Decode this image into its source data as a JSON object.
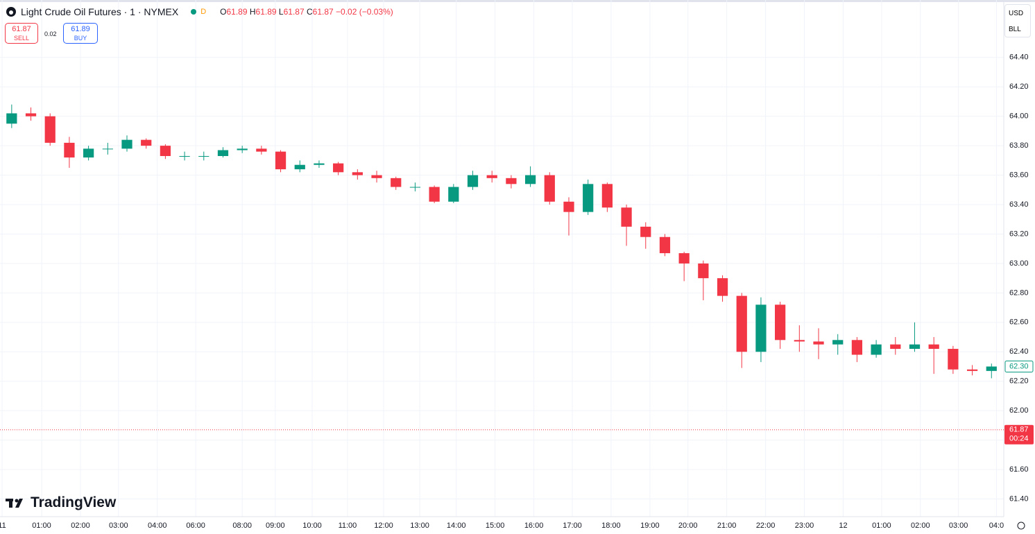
{
  "header": {
    "symbol": "Light Crude Oil Futures · 1 · NYMEX",
    "status": "D",
    "o_label": "O",
    "open": 61.89,
    "h_label": "H",
    "high": 61.89,
    "l_label": "L",
    "low": 61.87,
    "c_label": "C",
    "close": 61.87,
    "change": "−0.02",
    "change_pct": "(−0.03%)"
  },
  "trade": {
    "sell_price": 61.87,
    "sell_label": "SELL",
    "spread": 0.02,
    "buy_price": 61.89,
    "buy_label": "BUY"
  },
  "controls": {
    "currency": "USD",
    "unit": "BLL"
  },
  "brand": "TradingView",
  "chart_data": {
    "type": "candlestick",
    "up_color": "#089981",
    "down_color": "#f23645",
    "grid": true,
    "x": [
      0.25,
      0.75,
      1.25,
      1.75,
      2.25,
      2.75,
      3.25,
      3.75,
      4.25,
      4.75,
      5.25,
      5.75,
      6.25,
      6.75,
      7.25,
      7.75,
      8.25,
      8.75,
      9.25,
      9.75,
      10.25,
      10.75,
      11.25,
      11.75,
      12.25,
      12.75,
      13.25,
      13.75,
      14.25,
      14.75,
      15.25,
      15.75,
      16.25,
      16.75,
      17.25,
      17.75,
      18.25,
      18.75,
      19.25,
      19.75,
      20.25,
      20.75,
      21.25,
      21.75,
      22.25,
      22.75,
      23.25,
      23.75,
      24.25,
      24.75,
      25.25,
      25.75
    ],
    "open": [
      63.95,
      64.02,
      64.0,
      63.82,
      63.72,
      63.78,
      63.78,
      63.84,
      63.8,
      63.73,
      63.73,
      63.73,
      63.77,
      63.78,
      63.76,
      63.64,
      63.67,
      63.68,
      63.62,
      63.6,
      63.58,
      63.52,
      63.52,
      63.42,
      63.52,
      63.6,
      63.58,
      63.54,
      63.6,
      63.42,
      63.35,
      63.54,
      63.38,
      63.25,
      63.18,
      63.07,
      63.0,
      62.9,
      62.78,
      62.4,
      62.72,
      62.48,
      62.47,
      62.45,
      62.48,
      62.38,
      62.45,
      62.42,
      62.45,
      62.42,
      62.28,
      62.27
    ],
    "high": [
      64.08,
      64.06,
      64.02,
      63.86,
      63.8,
      63.82,
      63.87,
      63.85,
      63.81,
      63.76,
      63.76,
      63.79,
      63.8,
      63.8,
      63.77,
      63.7,
      63.7,
      63.69,
      63.64,
      63.63,
      63.59,
      63.55,
      63.53,
      63.54,
      63.63,
      63.63,
      63.6,
      63.66,
      63.62,
      63.45,
      63.57,
      63.55,
      63.4,
      63.28,
      63.2,
      63.08,
      63.02,
      62.92,
      62.8,
      62.77,
      62.74,
      62.58,
      62.56,
      62.52,
      62.5,
      62.48,
      62.5,
      62.6,
      62.5,
      62.44,
      62.31,
      62.32
    ],
    "low": [
      63.92,
      63.97,
      63.8,
      63.65,
      63.7,
      63.74,
      63.76,
      63.78,
      63.71,
      63.7,
      63.7,
      63.72,
      63.75,
      63.74,
      63.62,
      63.62,
      63.65,
      63.6,
      63.57,
      63.55,
      63.5,
      63.49,
      63.41,
      63.41,
      63.5,
      63.55,
      63.51,
      63.52,
      63.4,
      63.19,
      63.33,
      63.35,
      63.12,
      63.1,
      63.05,
      62.88,
      62.75,
      62.74,
      62.29,
      62.33,
      62.42,
      62.4,
      62.35,
      62.38,
      62.33,
      62.36,
      62.38,
      62.4,
      62.25,
      62.25,
      62.24,
      62.22
    ],
    "close": [
      64.02,
      64.0,
      63.82,
      63.72,
      63.78,
      63.78,
      63.84,
      63.8,
      63.73,
      63.73,
      63.73,
      63.77,
      63.78,
      63.76,
      63.64,
      63.67,
      63.68,
      63.62,
      63.6,
      63.58,
      63.52,
      63.52,
      63.42,
      63.52,
      63.6,
      63.58,
      63.54,
      63.6,
      63.42,
      63.35,
      63.54,
      63.38,
      63.25,
      63.18,
      63.07,
      63.0,
      62.9,
      62.78,
      62.4,
      62.72,
      62.48,
      62.47,
      62.45,
      62.48,
      62.38,
      62.45,
      62.42,
      62.45,
      62.42,
      62.28,
      62.27,
      62.3
    ],
    "xlim": [
      -0.054,
      26.07
    ],
    "xticks": [
      {
        "value": 0,
        "label": "11"
      },
      {
        "value": 1.03,
        "label": "01:00"
      },
      {
        "value": 2.04,
        "label": "02:00"
      },
      {
        "value": 3.03,
        "label": "03:00"
      },
      {
        "value": 4.04,
        "label": "04:00"
      },
      {
        "value": 5.04,
        "label": "06:00"
      },
      {
        "value": 6.25,
        "label": "08:00"
      },
      {
        "value": 7.11,
        "label": "09:00"
      },
      {
        "value": 8.07,
        "label": "10:00"
      },
      {
        "value": 8.99,
        "label": "11:00"
      },
      {
        "value": 9.93,
        "label": "12:00"
      },
      {
        "value": 10.87,
        "label": "13:00"
      },
      {
        "value": 11.82,
        "label": "14:00"
      },
      {
        "value": 12.83,
        "label": "15:00"
      },
      {
        "value": 13.84,
        "label": "16:00"
      },
      {
        "value": 14.84,
        "label": "17:00"
      },
      {
        "value": 15.85,
        "label": "18:00"
      },
      {
        "value": 16.86,
        "label": "19:00"
      },
      {
        "value": 17.85,
        "label": "20:00"
      },
      {
        "value": 18.86,
        "label": "21:00"
      },
      {
        "value": 19.87,
        "label": "22:00"
      },
      {
        "value": 20.88,
        "label": "23:00"
      },
      {
        "value": 21.89,
        "label": "12"
      },
      {
        "value": 22.89,
        "label": "01:00"
      },
      {
        "value": 23.9,
        "label": "02:00"
      },
      {
        "value": 24.89,
        "label": "03:00"
      },
      {
        "value": 25.88,
        "label": "04:0"
      }
    ],
    "ylim": [
      61.28,
      64.79
    ],
    "yticks": [
      {
        "value": 61.4,
        "label": "61.40"
      },
      {
        "value": 61.6,
        "label": "61.60"
      },
      {
        "value": 61.8,
        "label": "61.80"
      },
      {
        "value": 62,
        "label": "62.00"
      },
      {
        "value": 62.2,
        "label": "62.20"
      },
      {
        "value": 62.4,
        "label": "62.40"
      },
      {
        "value": 62.6,
        "label": "62.60"
      },
      {
        "value": 62.8,
        "label": "62.80"
      },
      {
        "value": 63,
        "label": "63.00"
      },
      {
        "value": 63.2,
        "label": "63.20"
      },
      {
        "value": 63.4,
        "label": "63.40"
      },
      {
        "value": 63.6,
        "label": "63.60"
      },
      {
        "value": 63.8,
        "label": "63.80"
      },
      {
        "value": 64,
        "label": "64.00"
      },
      {
        "value": 64.2,
        "label": "64.20"
      },
      {
        "value": 64.4,
        "label": "64.40"
      }
    ],
    "price_marker": {
      "value": 62.3,
      "label": "62.30"
    },
    "last_price": {
      "value": 61.87,
      "label": "61.87",
      "countdown": "00:24",
      "color": "#f23645"
    }
  }
}
